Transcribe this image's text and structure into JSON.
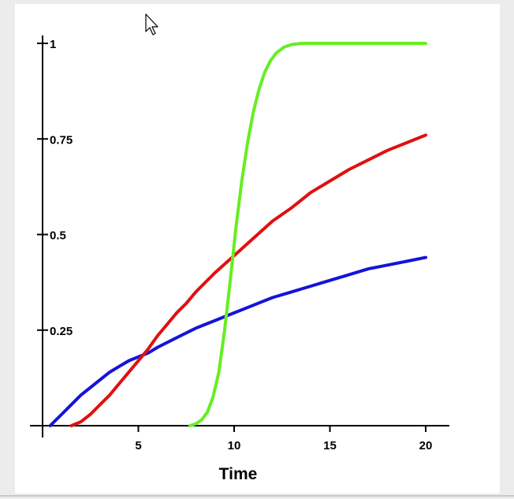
{
  "chart_data": {
    "type": "line",
    "title": "",
    "xlabel": "Time",
    "ylabel": "",
    "xlim": [
      0,
      21
    ],
    "ylim": [
      0,
      1
    ],
    "x_ticks": [
      5,
      10,
      15,
      20
    ],
    "x_tick_labels": [
      "5",
      "10",
      "15",
      "20"
    ],
    "y_ticks": [
      0.25,
      0.5,
      0.75,
      1
    ],
    "y_tick_labels": [
      "0.25",
      "0.5",
      "0.75",
      "1"
    ],
    "grid": false,
    "legend": "none",
    "series": [
      {
        "color": "#1414d8",
        "x": [
          0.4,
          1,
          1.5,
          2,
          2.5,
          3,
          3.5,
          4,
          4.5,
          5,
          5.5,
          6,
          7,
          8,
          9,
          10,
          11,
          12,
          13,
          14,
          15,
          16,
          17,
          18,
          19,
          20
        ],
        "y": [
          0,
          0.03,
          0.055,
          0.08,
          0.1,
          0.12,
          0.14,
          0.155,
          0.17,
          0.18,
          0.19,
          0.205,
          0.23,
          0.255,
          0.275,
          0.295,
          0.315,
          0.335,
          0.35,
          0.365,
          0.38,
          0.395,
          0.41,
          0.42,
          0.43,
          0.44
        ]
      },
      {
        "color": "#e01010",
        "x": [
          1.5,
          2,
          2.5,
          3,
          3.5,
          4,
          4.5,
          5,
          5.5,
          6,
          6.5,
          7,
          7.5,
          8,
          9,
          10,
          11,
          12,
          13,
          14,
          15,
          16,
          17,
          18,
          19,
          20
        ],
        "y": [
          0,
          0.01,
          0.03,
          0.055,
          0.08,
          0.11,
          0.14,
          0.17,
          0.2,
          0.235,
          0.265,
          0.295,
          0.32,
          0.35,
          0.4,
          0.445,
          0.49,
          0.535,
          0.57,
          0.61,
          0.64,
          0.67,
          0.695,
          0.72,
          0.74,
          0.76
        ]
      },
      {
        "color": "#66ee22",
        "x": [
          7.7,
          8,
          8.3,
          8.6,
          8.9,
          9.2,
          9.5,
          9.8,
          10.1,
          10.4,
          10.7,
          11,
          11.3,
          11.6,
          11.9,
          12.2,
          12.6,
          13,
          13.5,
          14,
          15,
          16,
          17,
          18,
          19,
          20
        ],
        "y": [
          0,
          0.005,
          0.015,
          0.035,
          0.075,
          0.14,
          0.25,
          0.38,
          0.52,
          0.64,
          0.74,
          0.82,
          0.88,
          0.925,
          0.955,
          0.975,
          0.99,
          0.997,
          1,
          1,
          1,
          1,
          1,
          1,
          1,
          1
        ]
      }
    ]
  }
}
